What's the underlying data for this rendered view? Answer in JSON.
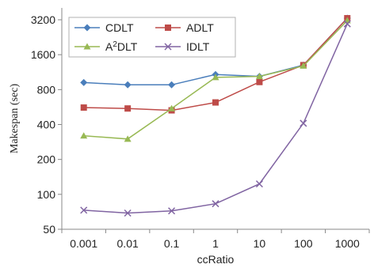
{
  "chart_data": {
    "type": "line",
    "xlabel": "ccRatio",
    "ylabel": "Makespan (sec)",
    "x_scale": "categorical",
    "y_scale": "log2",
    "categories": [
      "0.001",
      "0.01",
      "0.1",
      "1",
      "10",
      "100",
      "1000"
    ],
    "yticks": [
      50,
      100,
      200,
      400,
      800,
      1600,
      3200
    ],
    "ytick_labels": [
      "50",
      "100",
      "200",
      "400",
      "800",
      "1600",
      "3200"
    ],
    "ylim": [
      50,
      3200
    ],
    "grid": false,
    "legend_position": "top-left",
    "series": [
      {
        "name": "CDLT",
        "marker": "diamond",
        "color": "#4A7EBB",
        "values": [
          920,
          880,
          880,
          1080,
          1040,
          1300,
          3300
        ]
      },
      {
        "name": "ADLT",
        "marker": "square",
        "color": "#BE4B48",
        "values": [
          560,
          550,
          530,
          620,
          930,
          1300,
          3300
        ]
      },
      {
        "name": "A2DLT",
        "marker": "triangle",
        "color": "#98B954",
        "values": [
          320,
          300,
          550,
          1020,
          1040,
          1280,
          3150
        ]
      },
      {
        "name": "IDLT",
        "marker": "cross",
        "color": "#8064A2",
        "values": [
          73,
          69,
          72,
          83,
          123,
          410,
          2950
        ]
      }
    ]
  },
  "legend": {
    "items": [
      {
        "label": "CDLT"
      },
      {
        "label": "ADLT"
      },
      {
        "label_main": "A",
        "label_sup": "2",
        "label_rest": "DLT"
      },
      {
        "label": "IDLT"
      }
    ]
  }
}
